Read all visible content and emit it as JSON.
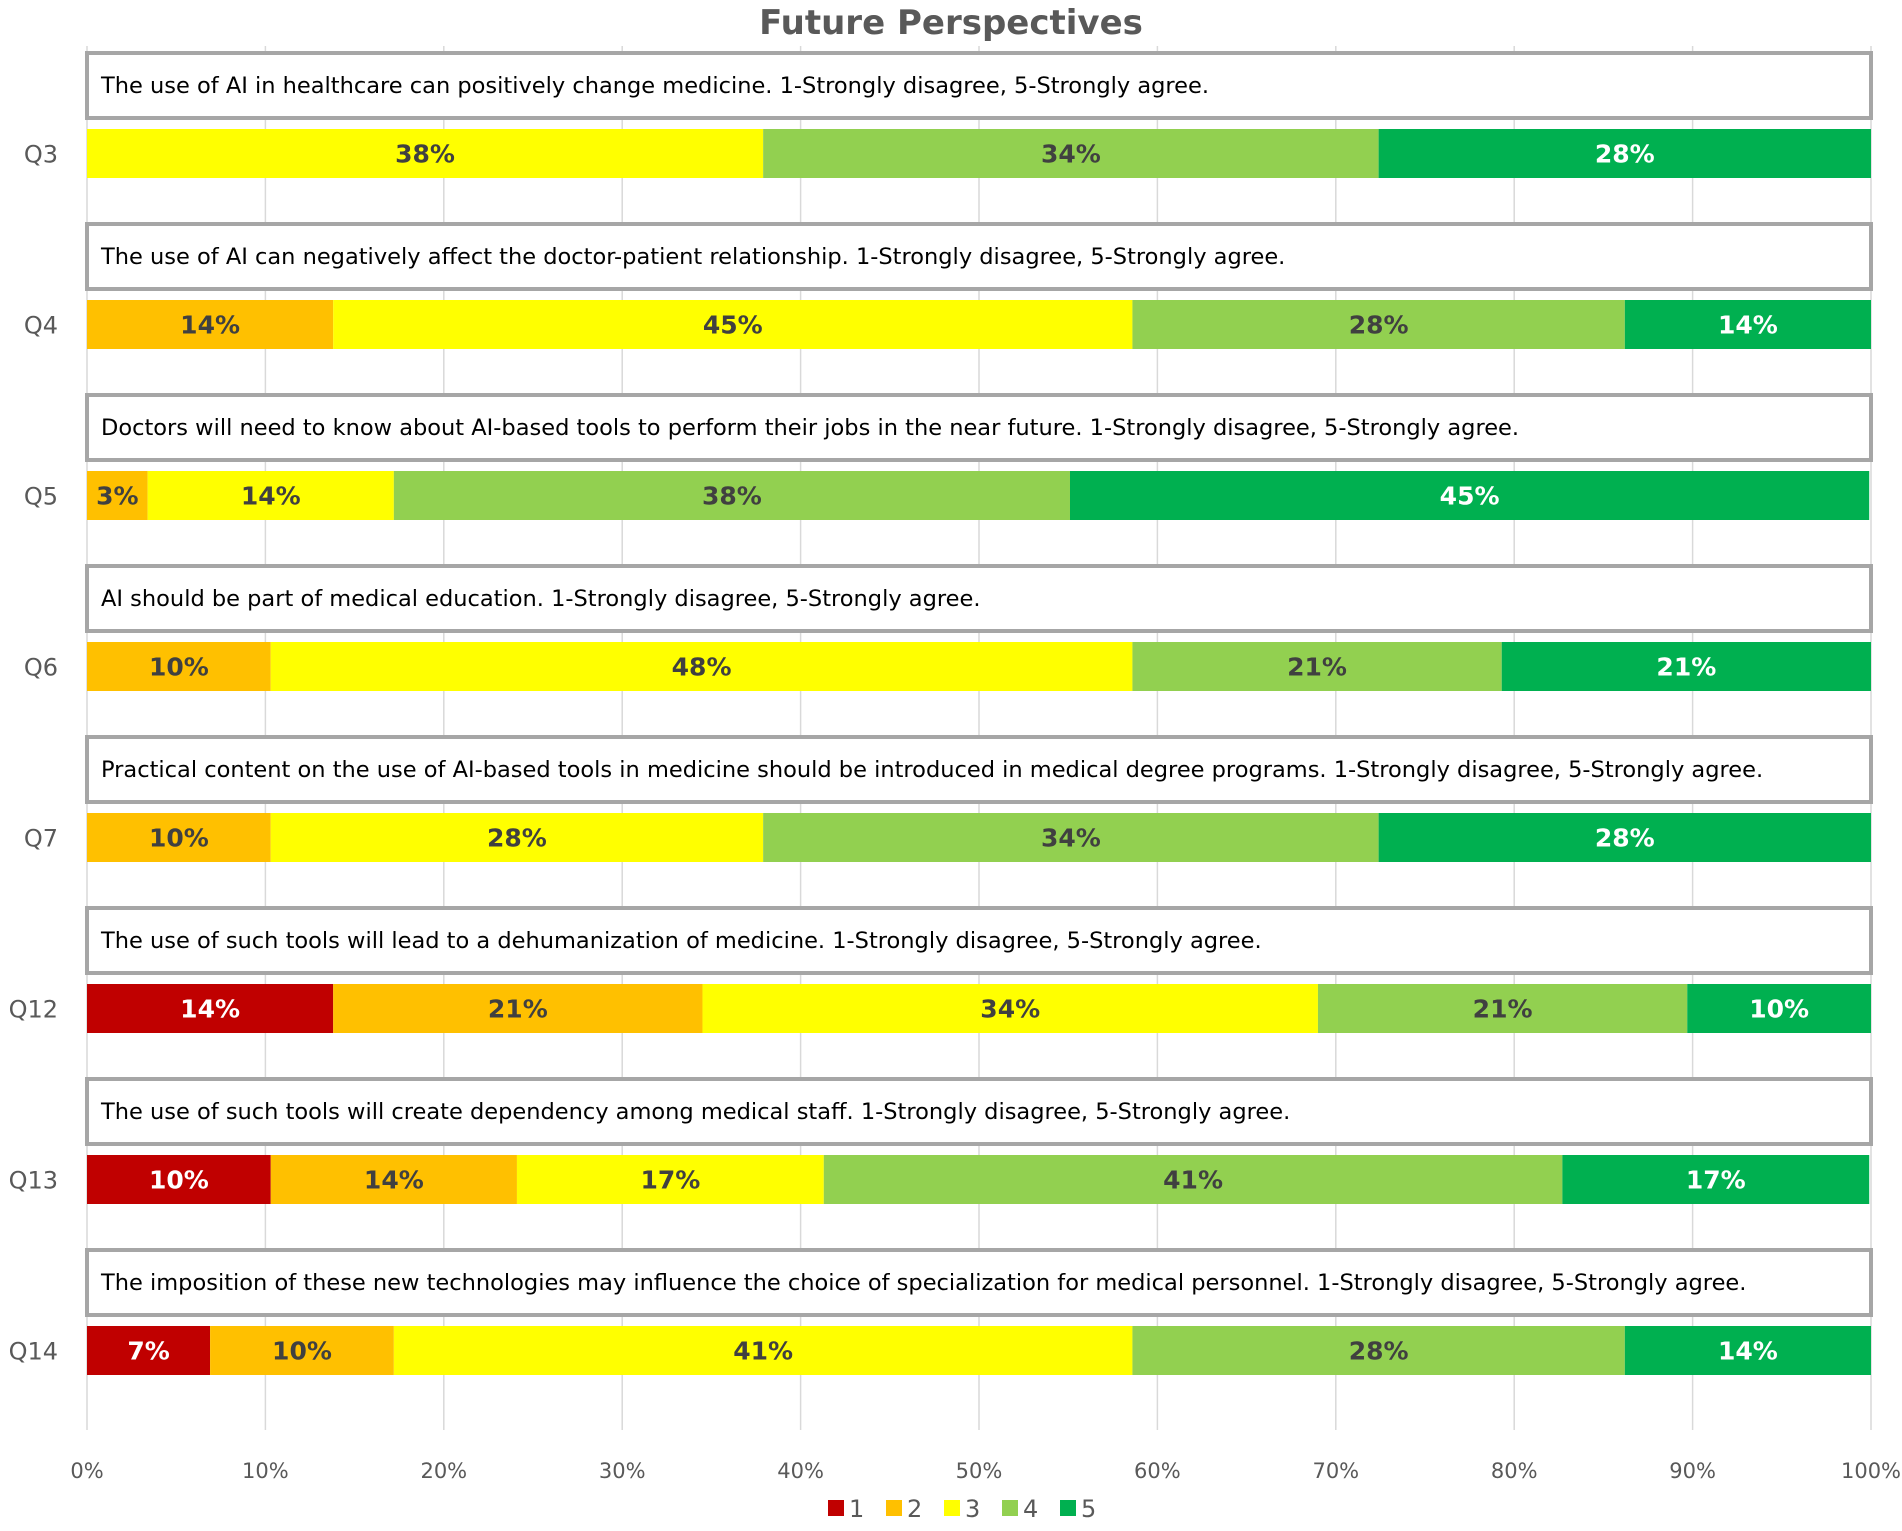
{
  "chart_data": {
    "type": "bar",
    "orientation": "horizontal",
    "stacked": true,
    "title": "Future Perspectives",
    "xlabel": "",
    "ylabel": "",
    "xlim": [
      0,
      100
    ],
    "x_ticks": [
      "0%",
      "10%",
      "20%",
      "30%",
      "40%",
      "50%",
      "60%",
      "70%",
      "80%",
      "90%",
      "100%"
    ],
    "grid": true,
    "legend_position": "bottom",
    "legend": [
      {
        "name": "1",
        "color": "#c00000"
      },
      {
        "name": "2",
        "color": "#ffc000"
      },
      {
        "name": "3",
        "color": "#ffff00"
      },
      {
        "name": "4",
        "color": "#92d050"
      },
      {
        "name": "5",
        "color": "#00b050"
      }
    ],
    "rows": [
      {
        "id": "Q3",
        "question": "The use of AI in healthcare can positively change medicine. 1-Strongly disagree, 5-Strongly agree.",
        "values": [
          0,
          0,
          37.9,
          34.5,
          27.6
        ],
        "labels": [
          "",
          "",
          "38%",
          "34%",
          "28%"
        ]
      },
      {
        "id": "Q4",
        "question": "The use of AI can negatively affect the doctor-patient relationship. 1-Strongly disagree, 5-Strongly agree.",
        "values": [
          0,
          13.8,
          44.8,
          27.6,
          13.8
        ],
        "labels": [
          "",
          "14%",
          "45%",
          "28%",
          "14%"
        ]
      },
      {
        "id": "Q5",
        "question": "Doctors will need to know about AI-based tools to perform their jobs in the near future. 1-Strongly disagree, 5-Strongly agree.",
        "values": [
          0,
          3.4,
          13.8,
          37.9,
          44.8
        ],
        "labels": [
          "",
          "3%",
          "14%",
          "38%",
          "45%"
        ]
      },
      {
        "id": "Q6",
        "question": "AI should be part of medical education. 1-Strongly disagree, 5-Strongly agree.",
        "values": [
          0,
          10.3,
          48.3,
          20.7,
          20.7
        ],
        "labels": [
          "",
          "10%",
          "48%",
          "21%",
          "21%"
        ]
      },
      {
        "id": "Q7",
        "question": "Practical content on the use of AI-based tools in medicine should be introduced in medical degree programs. 1-Strongly disagree, 5-Strongly agree.",
        "values": [
          0,
          10.3,
          27.6,
          34.5,
          27.6
        ],
        "labels": [
          "",
          "10%",
          "28%",
          "34%",
          "28%"
        ]
      },
      {
        "id": "Q12",
        "question": "The use of such tools will lead to a dehumanization of medicine. 1-Strongly disagree, 5-Strongly agree.",
        "values": [
          13.8,
          20.7,
          34.5,
          20.7,
          10.3
        ],
        "labels": [
          "14%",
          "21%",
          "34%",
          "21%",
          "10%"
        ]
      },
      {
        "id": "Q13",
        "question": "The use of such tools will create dependency among medical staff. 1-Strongly disagree, 5-Strongly agree.",
        "values": [
          10.3,
          13.8,
          17.2,
          41.4,
          17.2
        ],
        "labels": [
          "10%",
          "14%",
          "17%",
          "41%",
          "17%"
        ]
      },
      {
        "id": "Q14",
        "question": "The imposition of these new technologies may influence the choice of specialization for medical personnel. 1-Strongly disagree, 5-Strongly agree.",
        "values": [
          6.9,
          10.3,
          41.4,
          27.6,
          13.8
        ],
        "labels": [
          "7%",
          "10%",
          "41%",
          "28%",
          "14%"
        ]
      }
    ]
  },
  "label_colors": [
    "#ffffff",
    "#404040",
    "#404040",
    "#404040",
    "#ffffff"
  ]
}
